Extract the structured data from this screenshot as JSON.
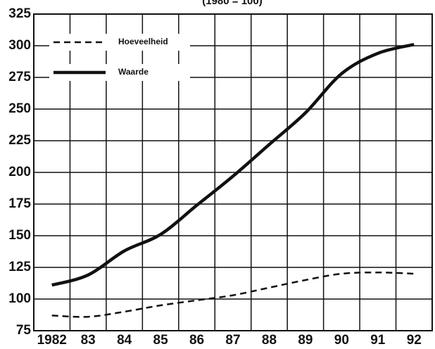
{
  "chart_data": {
    "type": "line",
    "subtitle": "(1980 = 100)",
    "categories": [
      "1982",
      "83",
      "84",
      "85",
      "86",
      "87",
      "88",
      "89",
      "90",
      "91",
      "92"
    ],
    "series": [
      {
        "name": "Hoeveelheid",
        "color": "#111111",
        "dash": true,
        "values": [
          87,
          86,
          90,
          95,
          99,
          103,
          109,
          115,
          120,
          121,
          120
        ]
      },
      {
        "name": "Waarde",
        "color": "#111111",
        "dash": false,
        "values": [
          111,
          119,
          138,
          151,
          174,
          197,
          222,
          247,
          278,
          294,
          301
        ]
      }
    ],
    "ylim": [
      75,
      325
    ],
    "yticks": [
      75,
      100,
      125,
      150,
      175,
      200,
      225,
      250,
      275,
      300,
      325
    ],
    "grid": true,
    "legend": "upper left"
  }
}
